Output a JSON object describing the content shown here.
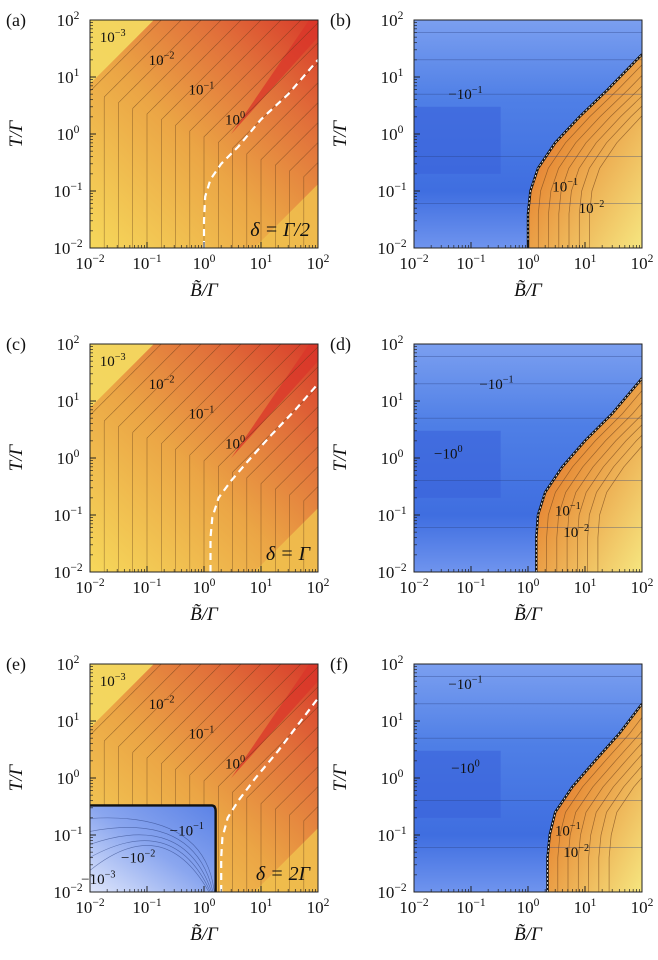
{
  "chart_data": [
    {
      "panel_label": "(a)",
      "type": "heatmap",
      "colormap": "orange",
      "x_scale": "log",
      "y_scale": "log",
      "xlim": [
        0.01,
        100
      ],
      "ylim": [
        0.01,
        100
      ],
      "xlabel": "B̃/Γ",
      "ylabel": "T/Γ",
      "x_ticks": [
        "10",
        "10",
        "10",
        "10",
        "10"
      ],
      "x_tick_exps": [
        "−2",
        "−1",
        "0",
        "1",
        "2"
      ],
      "y_ticks": [
        "10",
        "10",
        "10",
        "10",
        "10"
      ],
      "y_tick_exps": [
        "−2",
        "−1",
        "0",
        "1",
        "2"
      ],
      "annotation": "δ = Γ/2",
      "contour_labels": [
        {
          "base": "10",
          "exp": "−3",
          "x": 0.025,
          "y": 50
        },
        {
          "base": "10",
          "exp": "−2",
          "x": 0.18,
          "y": 20
        },
        {
          "base": "10",
          "exp": "−1",
          "x": 0.9,
          "y": 6
        },
        {
          "base": "10",
          "exp": "0",
          "x": 3.5,
          "y": 1.8
        }
      ],
      "dashed_curve": {
        "x": [
          1.0,
          1.0,
          1.05,
          1.3,
          2.0,
          4.0,
          10,
          30,
          100
        ],
        "y": [
          0.01,
          0.03,
          0.08,
          0.16,
          0.3,
          0.6,
          1.8,
          5,
          20
        ]
      }
    },
    {
      "panel_label": "(b)",
      "type": "heatmap",
      "colormap": "blue-orange",
      "x_scale": "log",
      "y_scale": "log",
      "xlim": [
        0.01,
        100
      ],
      "ylim": [
        0.01,
        100
      ],
      "xlabel": "B̃/Γ",
      "ylabel": "T/Γ",
      "x_ticks": [
        "10",
        "10",
        "10",
        "10",
        "10"
      ],
      "x_tick_exps": [
        "−2",
        "−1",
        "0",
        "1",
        "2"
      ],
      "y_ticks": [
        "10",
        "10",
        "10",
        "10",
        "10"
      ],
      "y_tick_exps": [
        "−2",
        "−1",
        "0",
        "1",
        "2"
      ],
      "annotation": "",
      "contour_labels": [
        {
          "base": "−10",
          "exp": "−1",
          "x": 0.08,
          "y": 5
        },
        {
          "base": "10",
          "exp": "−1",
          "x": 4.5,
          "y": 0.12
        },
        {
          "base": "10",
          "exp": "−2",
          "x": 13,
          "y": 0.05
        }
      ],
      "boundary_curve": {
        "x": [
          1.0,
          1.0,
          1.1,
          1.5,
          3,
          8,
          25,
          100
        ],
        "y": [
          0.01,
          0.04,
          0.1,
          0.25,
          0.7,
          2,
          6,
          25
        ]
      }
    },
    {
      "panel_label": "(c)",
      "type": "heatmap",
      "colormap": "orange",
      "x_scale": "log",
      "y_scale": "log",
      "xlim": [
        0.01,
        100
      ],
      "ylim": [
        0.01,
        100
      ],
      "xlabel": "B̃/Γ",
      "ylabel": "T/Γ",
      "x_ticks": [
        "10",
        "10",
        "10",
        "10",
        "10"
      ],
      "x_tick_exps": [
        "−2",
        "−1",
        "0",
        "1",
        "2"
      ],
      "y_ticks": [
        "10",
        "10",
        "10",
        "10",
        "10"
      ],
      "y_tick_exps": [
        "−2",
        "−1",
        "0",
        "1",
        "2"
      ],
      "annotation": "δ = Γ",
      "contour_labels": [
        {
          "base": "10",
          "exp": "−3",
          "x": 0.025,
          "y": 50
        },
        {
          "base": "10",
          "exp": "−2",
          "x": 0.18,
          "y": 20
        },
        {
          "base": "10",
          "exp": "−1",
          "x": 0.9,
          "y": 6
        },
        {
          "base": "10",
          "exp": "0",
          "x": 3.5,
          "y": 1.8
        }
      ],
      "dashed_curve": {
        "x": [
          1.3,
          1.3,
          1.4,
          1.8,
          3,
          6,
          15,
          40,
          100
        ],
        "y": [
          0.01,
          0.04,
          0.09,
          0.2,
          0.4,
          0.9,
          2.5,
          7,
          20
        ]
      }
    },
    {
      "panel_label": "(d)",
      "type": "heatmap",
      "colormap": "blue-orange",
      "x_scale": "log",
      "y_scale": "log",
      "xlim": [
        0.01,
        100
      ],
      "ylim": [
        0.01,
        100
      ],
      "xlabel": "B̃/Γ",
      "ylabel": "T/Γ",
      "x_ticks": [
        "10",
        "10",
        "10",
        "10",
        "10"
      ],
      "x_tick_exps": [
        "−2",
        "−1",
        "0",
        "1",
        "2"
      ],
      "y_ticks": [
        "10",
        "10",
        "10",
        "10",
        "10"
      ],
      "y_tick_exps": [
        "−2",
        "−1",
        "0",
        "1",
        "2"
      ],
      "annotation": "",
      "contour_labels": [
        {
          "base": "−10",
          "exp": "−1",
          "x": 0.28,
          "y": 20
        },
        {
          "base": "−10",
          "exp": "0",
          "x": 0.04,
          "y": 1.2
        },
        {
          "base": "10",
          "exp": "−1",
          "x": 5,
          "y": 0.12
        },
        {
          "base": "10",
          "exp": "−2",
          "x": 7,
          "y": 0.05
        }
      ],
      "boundary_curve": {
        "x": [
          1.4,
          1.4,
          1.5,
          2,
          4,
          10,
          30,
          100
        ],
        "y": [
          0.01,
          0.04,
          0.1,
          0.25,
          0.7,
          2,
          6,
          25
        ]
      }
    },
    {
      "panel_label": "(e)",
      "type": "heatmap",
      "colormap": "orange-blue",
      "x_scale": "log",
      "y_scale": "log",
      "xlim": [
        0.01,
        100
      ],
      "ylim": [
        0.01,
        100
      ],
      "xlabel": "B̃/Γ",
      "ylabel": "T/Γ",
      "x_ticks": [
        "10",
        "10",
        "10",
        "10",
        "10"
      ],
      "x_tick_exps": [
        "−2",
        "−1",
        "0",
        "1",
        "2"
      ],
      "y_ticks": [
        "10",
        "10",
        "10",
        "10",
        "10"
      ],
      "y_tick_exps": [
        "−2",
        "−1",
        "0",
        "1",
        "2"
      ],
      "annotation": "δ = 2Γ",
      "contour_labels": [
        {
          "base": "10",
          "exp": "−3",
          "x": 0.025,
          "y": 50
        },
        {
          "base": "10",
          "exp": "−2",
          "x": 0.18,
          "y": 20
        },
        {
          "base": "10",
          "exp": "−1",
          "x": 0.9,
          "y": 6
        },
        {
          "base": "10",
          "exp": "0",
          "x": 3.5,
          "y": 1.8
        },
        {
          "base": "−10",
          "exp": "−1",
          "x": 0.5,
          "y": 0.12
        },
        {
          "base": "−10",
          "exp": "−2",
          "x": 0.07,
          "y": 0.04
        },
        {
          "base": "−10",
          "exp": "−3",
          "x": 0.014,
          "y": 0.017
        }
      ],
      "dashed_curve": {
        "x": [
          2.0,
          2.0,
          2.1,
          2.6,
          4,
          8,
          20,
          50,
          100
        ],
        "y": [
          0.01,
          0.04,
          0.09,
          0.2,
          0.4,
          1.0,
          3,
          10,
          25
        ]
      },
      "negative_region": {
        "x_max": 1.6,
        "y_max": 0.33
      }
    },
    {
      "panel_label": "(f)",
      "type": "heatmap",
      "colormap": "blue-orange",
      "x_scale": "log",
      "y_scale": "log",
      "xlim": [
        0.01,
        100
      ],
      "ylim": [
        0.01,
        100
      ],
      "xlabel": "B̃/Γ",
      "ylabel": "T/Γ",
      "x_ticks": [
        "10",
        "10",
        "10",
        "10",
        "10"
      ],
      "x_tick_exps": [
        "−2",
        "−1",
        "0",
        "1",
        "2"
      ],
      "y_ticks": [
        "10",
        "10",
        "10",
        "10",
        "10"
      ],
      "y_tick_exps": [
        "−2",
        "−1",
        "0",
        "1",
        "2"
      ],
      "annotation": "",
      "contour_labels": [
        {
          "base": "−10",
          "exp": "−1",
          "x": 0.08,
          "y": 45
        },
        {
          "base": "−10",
          "exp": "0",
          "x": 0.08,
          "y": 1.5
        },
        {
          "base": "10",
          "exp": "−1",
          "x": 5,
          "y": 0.12
        },
        {
          "base": "10",
          "exp": "−2",
          "x": 7,
          "y": 0.05
        }
      ],
      "boundary_curve": {
        "x": [
          2.2,
          2.2,
          2.4,
          3,
          6,
          15,
          40,
          100
        ],
        "y": [
          0.01,
          0.04,
          0.1,
          0.25,
          0.7,
          2,
          6,
          20
        ]
      }
    }
  ]
}
